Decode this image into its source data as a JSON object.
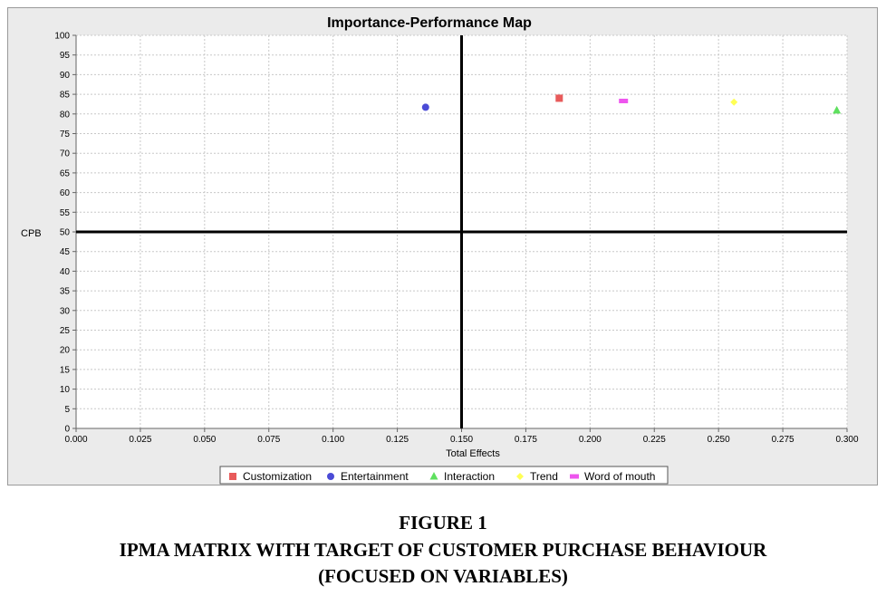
{
  "chart_data": {
    "type": "scatter",
    "title": "Importance-Performance Map",
    "xlabel": "Total Effects",
    "ylabel": "CPB",
    "xlim": [
      0.0,
      0.3
    ],
    "ylim": [
      0,
      100
    ],
    "x_ticks": [
      "0.000",
      "0.025",
      "0.050",
      "0.075",
      "0.100",
      "0.125",
      "0.150",
      "0.175",
      "0.200",
      "0.225",
      "0.250",
      "0.275",
      "0.300"
    ],
    "y_ticks": [
      "0",
      "5",
      "10",
      "15",
      "20",
      "25",
      "30",
      "35",
      "40",
      "45",
      "50",
      "55",
      "60",
      "65",
      "70",
      "75",
      "80",
      "85",
      "90",
      "95",
      "100"
    ],
    "grid": true,
    "reference_lines": {
      "x": 0.15,
      "y": 50
    },
    "legend_position": "bottom",
    "series": [
      {
        "name": "Customization",
        "x": 0.188,
        "y": 84.0,
        "color": "#e85a5a",
        "marker": "square"
      },
      {
        "name": "Entertainment",
        "x": 0.136,
        "y": 81.7,
        "color": "#4b4bd6",
        "marker": "circle"
      },
      {
        "name": "Interaction",
        "x": 0.296,
        "y": 80.9,
        "color": "#5ee05e",
        "marker": "triangle"
      },
      {
        "name": "Trend",
        "x": 0.256,
        "y": 83.0,
        "color": "#ffff55",
        "marker": "diamond"
      },
      {
        "name": "Word of mouth",
        "x": 0.213,
        "y": 83.3,
        "color": "#ee55ee",
        "marker": "rect"
      }
    ]
  },
  "caption": {
    "line1": "FIGURE 1",
    "line2": "IPMA MATRIX WITH TARGET OF CUSTOMER PURCHASE BEHAVIOUR",
    "line3": "(FOCUSED ON VARIABLES)"
  }
}
